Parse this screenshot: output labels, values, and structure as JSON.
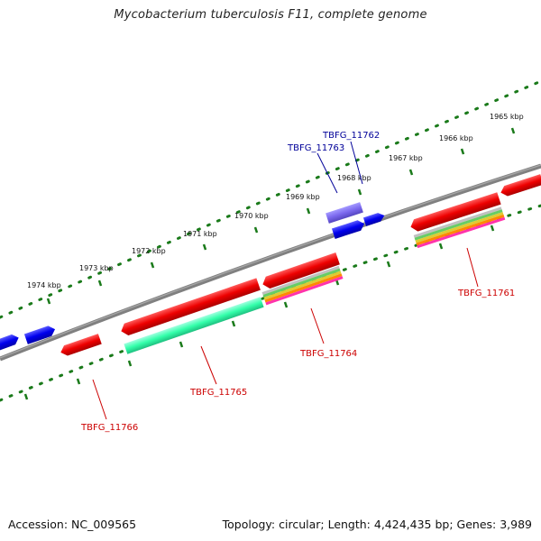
{
  "title": "Mycobacterium tuberculosis F11, complete genome",
  "footer": {
    "accession": "Accession: NC_009565",
    "topology": "Topology: circular; Length: 4,424,435 bp; Genes: 3,989"
  },
  "scale_labels": [
    "1965 kbp",
    "1966 kbp",
    "1967 kbp",
    "1968 kbp",
    "1969 kbp",
    "1970 kbp",
    "1971 kbp",
    "1972 kbp",
    "1973 kbp",
    "1974 kbp"
  ],
  "gene_labels": {
    "g11762": "TBFG_11762",
    "g11763": "TBFG_11763",
    "g11761": "TBFG_11761",
    "g11764": "TBFG_11764",
    "g11765": "TBFG_11765",
    "g11766": "TBFG_11766"
  },
  "colors": {
    "backbone": "#808080",
    "forward_cds": "#0000ff",
    "reverse_cds": "#ee0000",
    "highlight_cds": "#7b68ee",
    "feature_cyan": "#33ffaa",
    "scale_tick": "#1a7a1a",
    "label_blue": "#000099",
    "label_red": "#cc0000"
  }
}
